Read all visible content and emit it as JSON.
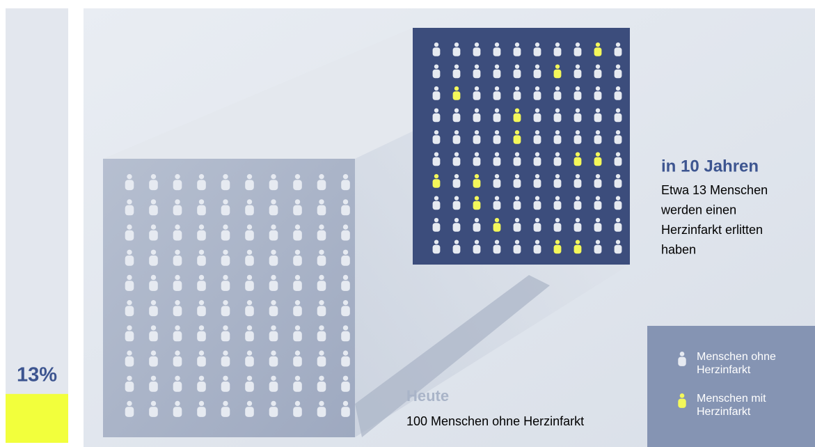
{
  "percent_bar": {
    "label": "13%",
    "value": 13,
    "color": "#f2ff3c"
  },
  "grid_today": {
    "title": "Heute",
    "text": "100 Menschen ohne Herzinfarkt",
    "rows": 10,
    "cols": 10
  },
  "grid_future": {
    "title": "in 10 Jahren",
    "text_lines": [
      "Etwa 13 Menschen",
      "werden einen",
      "Herzinfarkt erlitten",
      "haben"
    ],
    "rows": 10,
    "cols": 10,
    "highlighted_cells": [
      [
        0,
        8
      ],
      [
        1,
        6
      ],
      [
        2,
        1
      ],
      [
        3,
        4
      ],
      [
        4,
        4
      ],
      [
        5,
        7
      ],
      [
        5,
        8
      ],
      [
        6,
        0
      ],
      [
        6,
        2
      ],
      [
        7,
        2
      ],
      [
        8,
        3
      ],
      [
        9,
        6
      ],
      [
        9,
        7
      ]
    ]
  },
  "legend": [
    {
      "lines": [
        "Menschen ohne",
        "Herzinfarkt"
      ],
      "color": "#e6eaf1"
    },
    {
      "lines": [
        "Menschen mit",
        "Herzinfarkt"
      ],
      "color": "#f4f85a"
    }
  ]
}
